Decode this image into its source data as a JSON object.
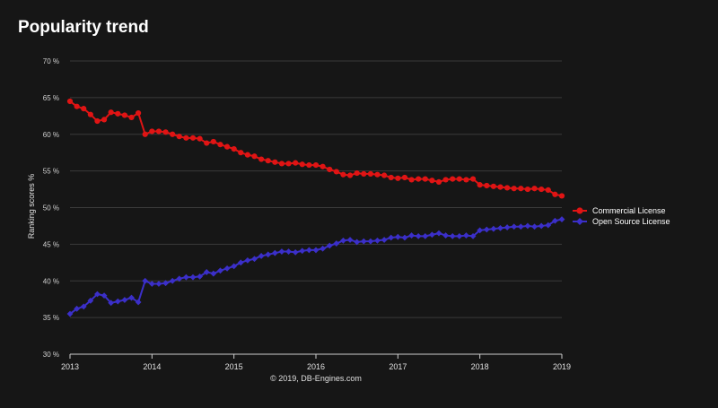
{
  "colors": {
    "background": "#161616",
    "grid": "#3a3a3a",
    "axis": "#cfcfcf",
    "commercial": "#e01414",
    "open_source": "#3b2fc9"
  },
  "chart_data": {
    "type": "line",
    "title": "Popularity trend",
    "ylabel": "Ranking scores %",
    "xlabel": "",
    "credit": "© 2019, DB-Engines.com",
    "x_range": [
      2013,
      2019
    ],
    "ylim": [
      30,
      70
    ],
    "y_ticks": [
      30,
      35,
      40,
      45,
      50,
      55,
      60,
      65,
      70
    ],
    "y_tick_labels": [
      "30 %",
      "35 %",
      "40 %",
      "45 %",
      "50 %",
      "55 %",
      "60 %",
      "65 %",
      "70 %"
    ],
    "x_ticks": [
      2013,
      2014,
      2015,
      2016,
      2017,
      2018,
      2019
    ],
    "x_tick_labels": [
      "2013",
      "2014",
      "2015",
      "2016",
      "2017",
      "2018",
      "2019"
    ],
    "legend_position": "right",
    "series": [
      {
        "name": "Commercial License",
        "marker": "circle",
        "values": [
          64.5,
          63.8,
          63.5,
          62.7,
          61.8,
          62.0,
          63.0,
          62.8,
          62.6,
          62.3,
          62.9,
          60.0,
          60.4,
          60.4,
          60.3,
          60.0,
          59.7,
          59.5,
          59.5,
          59.4,
          58.8,
          59.0,
          58.6,
          58.3,
          58.0,
          57.5,
          57.2,
          57.0,
          56.6,
          56.4,
          56.2,
          56.0,
          56.0,
          56.1,
          55.9,
          55.8,
          55.8,
          55.6,
          55.2,
          54.9,
          54.5,
          54.4,
          54.7,
          54.6,
          54.6,
          54.5,
          54.4,
          54.1,
          54.0,
          54.1,
          53.8,
          53.9,
          53.9,
          53.7,
          53.5,
          53.8,
          53.9,
          53.9,
          53.8,
          53.9,
          53.1,
          53.0,
          52.9,
          52.8,
          52.7,
          52.6,
          52.6,
          52.5,
          52.6,
          52.5,
          52.4,
          51.8,
          51.6
        ]
      },
      {
        "name": "Open Source License",
        "marker": "diamond",
        "values": [
          35.5,
          36.2,
          36.5,
          37.3,
          38.2,
          38.0,
          37.0,
          37.2,
          37.4,
          37.7,
          37.1,
          40.0,
          39.6,
          39.6,
          39.7,
          40.0,
          40.3,
          40.5,
          40.5,
          40.6,
          41.2,
          41.0,
          41.4,
          41.7,
          42.0,
          42.5,
          42.8,
          43.0,
          43.4,
          43.6,
          43.8,
          44.0,
          44.0,
          43.9,
          44.1,
          44.2,
          44.2,
          44.4,
          44.8,
          45.1,
          45.5,
          45.6,
          45.3,
          45.4,
          45.4,
          45.5,
          45.6,
          45.9,
          46.0,
          45.9,
          46.2,
          46.1,
          46.1,
          46.3,
          46.5,
          46.2,
          46.1,
          46.1,
          46.2,
          46.1,
          46.9,
          47.0,
          47.1,
          47.2,
          47.3,
          47.4,
          47.4,
          47.5,
          47.4,
          47.5,
          47.6,
          48.2,
          48.4
        ]
      }
    ]
  }
}
